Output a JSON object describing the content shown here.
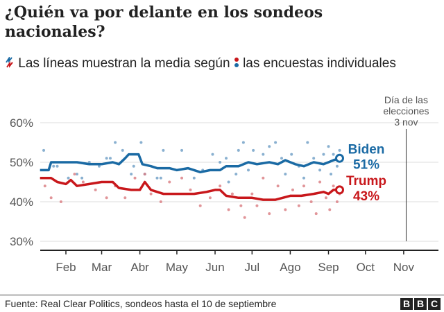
{
  "title": "¿Quién va por delante en los sondeos nacionales?",
  "subtitle": {
    "part1": "Las líneas muestran la media según",
    "part2": "las encuestas individuales",
    "line_icon": "zigzag-line-icon",
    "dot_icon": "dots-icon"
  },
  "footer": {
    "source": "Fuente: Real Clear Politics, sondeos hasta el 10 de septiembre",
    "logo": "BBC"
  },
  "chart_data": {
    "type": "line",
    "title": "",
    "xlabel": "",
    "ylabel": "",
    "ylim": [
      30,
      60
    ],
    "x_range": [
      "01-11",
      "11-15"
    ],
    "y_ticks": [
      {
        "v": 30,
        "label": "30%"
      },
      {
        "v": 40,
        "label": "40%"
      },
      {
        "v": 50,
        "label": "50%"
      },
      {
        "v": 60,
        "label": "60%"
      }
    ],
    "x_ticks": [
      {
        "d": "02-01",
        "label": "Feb"
      },
      {
        "d": "03-01",
        "label": "Mar"
      },
      {
        "d": "04-01",
        "label": "Abr"
      },
      {
        "d": "05-01",
        "label": "May"
      },
      {
        "d": "06-01",
        "label": "Jun"
      },
      {
        "d": "07-01",
        "label": "Jul"
      },
      {
        "d": "08-01",
        "label": "Ago"
      },
      {
        "d": "09-01",
        "label": "Sep"
      },
      {
        "d": "10-01",
        "label": "Oct"
      },
      {
        "d": "11-01",
        "label": "Nov"
      }
    ],
    "grid": true,
    "annotation": {
      "date": "11-03",
      "text": [
        "Día de las",
        "elecciones",
        "3 nov"
      ]
    },
    "series": [
      {
        "name": "Biden",
        "end_label": "51%",
        "color": "#1a6aa4",
        "dot_color": "#6b9cc4",
        "average": [
          [
            "01-11",
            48
          ],
          [
            "01-18",
            48
          ],
          [
            "01-20",
            50
          ],
          [
            "02-01",
            50
          ],
          [
            "02-10",
            50
          ],
          [
            "02-20",
            49.5
          ],
          [
            "03-01",
            49.5
          ],
          [
            "03-10",
            50
          ],
          [
            "03-15",
            49.5
          ],
          [
            "03-20",
            51
          ],
          [
            "03-23",
            52
          ],
          [
            "03-31",
            52
          ],
          [
            "04-03",
            49.5
          ],
          [
            "04-10",
            49
          ],
          [
            "04-15",
            48.5
          ],
          [
            "04-25",
            48.5
          ],
          [
            "05-01",
            48
          ],
          [
            "05-10",
            48.5
          ],
          [
            "05-20",
            47.5
          ],
          [
            "05-28",
            48
          ],
          [
            "06-05",
            48
          ],
          [
            "06-10",
            49
          ],
          [
            "06-20",
            49
          ],
          [
            "06-28",
            50
          ],
          [
            "07-05",
            49.5
          ],
          [
            "07-15",
            50
          ],
          [
            "07-22",
            49.5
          ],
          [
            "07-28",
            50.5
          ],
          [
            "08-05",
            49.5
          ],
          [
            "08-12",
            49
          ],
          [
            "08-20",
            50
          ],
          [
            "08-28",
            49.5
          ],
          [
            "09-01",
            50
          ],
          [
            "09-05",
            50.5
          ],
          [
            "09-10",
            51
          ]
        ],
        "polls": [
          [
            "01-14",
            53
          ],
          [
            "01-22",
            49
          ],
          [
            "01-25",
            49
          ],
          [
            "02-03",
            46
          ],
          [
            "02-10",
            47
          ],
          [
            "02-14",
            46
          ],
          [
            "02-20",
            50
          ],
          [
            "02-28",
            49
          ],
          [
            "03-05",
            51
          ],
          [
            "03-08",
            51
          ],
          [
            "03-12",
            55
          ],
          [
            "03-18",
            53
          ],
          [
            "03-25",
            47
          ],
          [
            "03-27",
            49
          ],
          [
            "04-02",
            55
          ],
          [
            "04-05",
            47
          ],
          [
            "04-15",
            46
          ],
          [
            "04-18",
            46
          ],
          [
            "04-20",
            53
          ],
          [
            "05-05",
            53
          ],
          [
            "05-15",
            46
          ],
          [
            "05-22",
            48
          ],
          [
            "05-30",
            52
          ],
          [
            "06-05",
            50
          ],
          [
            "06-10",
            51
          ],
          [
            "06-12",
            45
          ],
          [
            "06-18",
            47
          ],
          [
            "06-20",
            53
          ],
          [
            "06-24",
            55
          ],
          [
            "06-28",
            48
          ],
          [
            "07-02",
            53
          ],
          [
            "07-10",
            52
          ],
          [
            "07-15",
            54
          ],
          [
            "07-20",
            55
          ],
          [
            "07-25",
            51
          ],
          [
            "07-28",
            47
          ],
          [
            "08-02",
            52
          ],
          [
            "08-08",
            49
          ],
          [
            "08-12",
            46
          ],
          [
            "08-15",
            55
          ],
          [
            "08-20",
            51
          ],
          [
            "08-25",
            48
          ],
          [
            "08-28",
            52
          ],
          [
            "09-01",
            54
          ],
          [
            "09-03",
            47
          ],
          [
            "09-05",
            52
          ],
          [
            "09-08",
            49
          ],
          [
            "09-10",
            53
          ]
        ]
      },
      {
        "name": "Trump",
        "end_label": "43%",
        "color": "#c8171b",
        "dot_color": "#d97a80",
        "average": [
          [
            "01-11",
            46
          ],
          [
            "01-20",
            46
          ],
          [
            "01-25",
            45
          ],
          [
            "02-01",
            44.5
          ],
          [
            "02-05",
            45.5
          ],
          [
            "02-10",
            44
          ],
          [
            "02-20",
            44.5
          ],
          [
            "03-01",
            45
          ],
          [
            "03-10",
            45
          ],
          [
            "03-15",
            43.5
          ],
          [
            "03-25",
            43
          ],
          [
            "04-01",
            43
          ],
          [
            "04-05",
            45
          ],
          [
            "04-10",
            43
          ],
          [
            "04-20",
            42
          ],
          [
            "05-01",
            42
          ],
          [
            "05-15",
            42
          ],
          [
            "05-25",
            42.5
          ],
          [
            "06-01",
            43
          ],
          [
            "06-05",
            43
          ],
          [
            "06-10",
            41.5
          ],
          [
            "06-20",
            41
          ],
          [
            "07-01",
            41
          ],
          [
            "07-10",
            40.5
          ],
          [
            "07-20",
            40.5
          ],
          [
            "08-01",
            41.5
          ],
          [
            "08-10",
            41.5
          ],
          [
            "08-20",
            42
          ],
          [
            "08-28",
            42.5
          ],
          [
            "09-01",
            42
          ],
          [
            "09-05",
            43
          ],
          [
            "09-10",
            43
          ]
        ],
        "polls": [
          [
            "01-15",
            44
          ],
          [
            "01-20",
            41
          ],
          [
            "01-28",
            40
          ],
          [
            "02-08",
            47
          ],
          [
            "02-15",
            45
          ],
          [
            "02-25",
            43
          ],
          [
            "03-05",
            41
          ],
          [
            "03-12",
            44
          ],
          [
            "03-20",
            41
          ],
          [
            "03-28",
            46
          ],
          [
            "04-05",
            47
          ],
          [
            "04-10",
            42
          ],
          [
            "04-18",
            40
          ],
          [
            "04-25",
            45
          ],
          [
            "05-05",
            46
          ],
          [
            "05-12",
            43
          ],
          [
            "05-20",
            39
          ],
          [
            "05-28",
            41
          ],
          [
            "06-05",
            44
          ],
          [
            "06-12",
            38
          ],
          [
            "06-15",
            42
          ],
          [
            "06-22",
            39
          ],
          [
            "06-25",
            36
          ],
          [
            "07-01",
            42
          ],
          [
            "07-05",
            39
          ],
          [
            "07-10",
            46
          ],
          [
            "07-15",
            37
          ],
          [
            "07-22",
            44
          ],
          [
            "07-28",
            38
          ],
          [
            "08-03",
            43
          ],
          [
            "08-08",
            39
          ],
          [
            "08-12",
            44
          ],
          [
            "08-18",
            40
          ],
          [
            "08-22",
            37
          ],
          [
            "08-25",
            45
          ],
          [
            "08-30",
            41
          ],
          [
            "09-02",
            38
          ],
          [
            "09-05",
            44
          ],
          [
            "09-08",
            40
          ],
          [
            "09-10",
            42
          ]
        ]
      }
    ]
  }
}
